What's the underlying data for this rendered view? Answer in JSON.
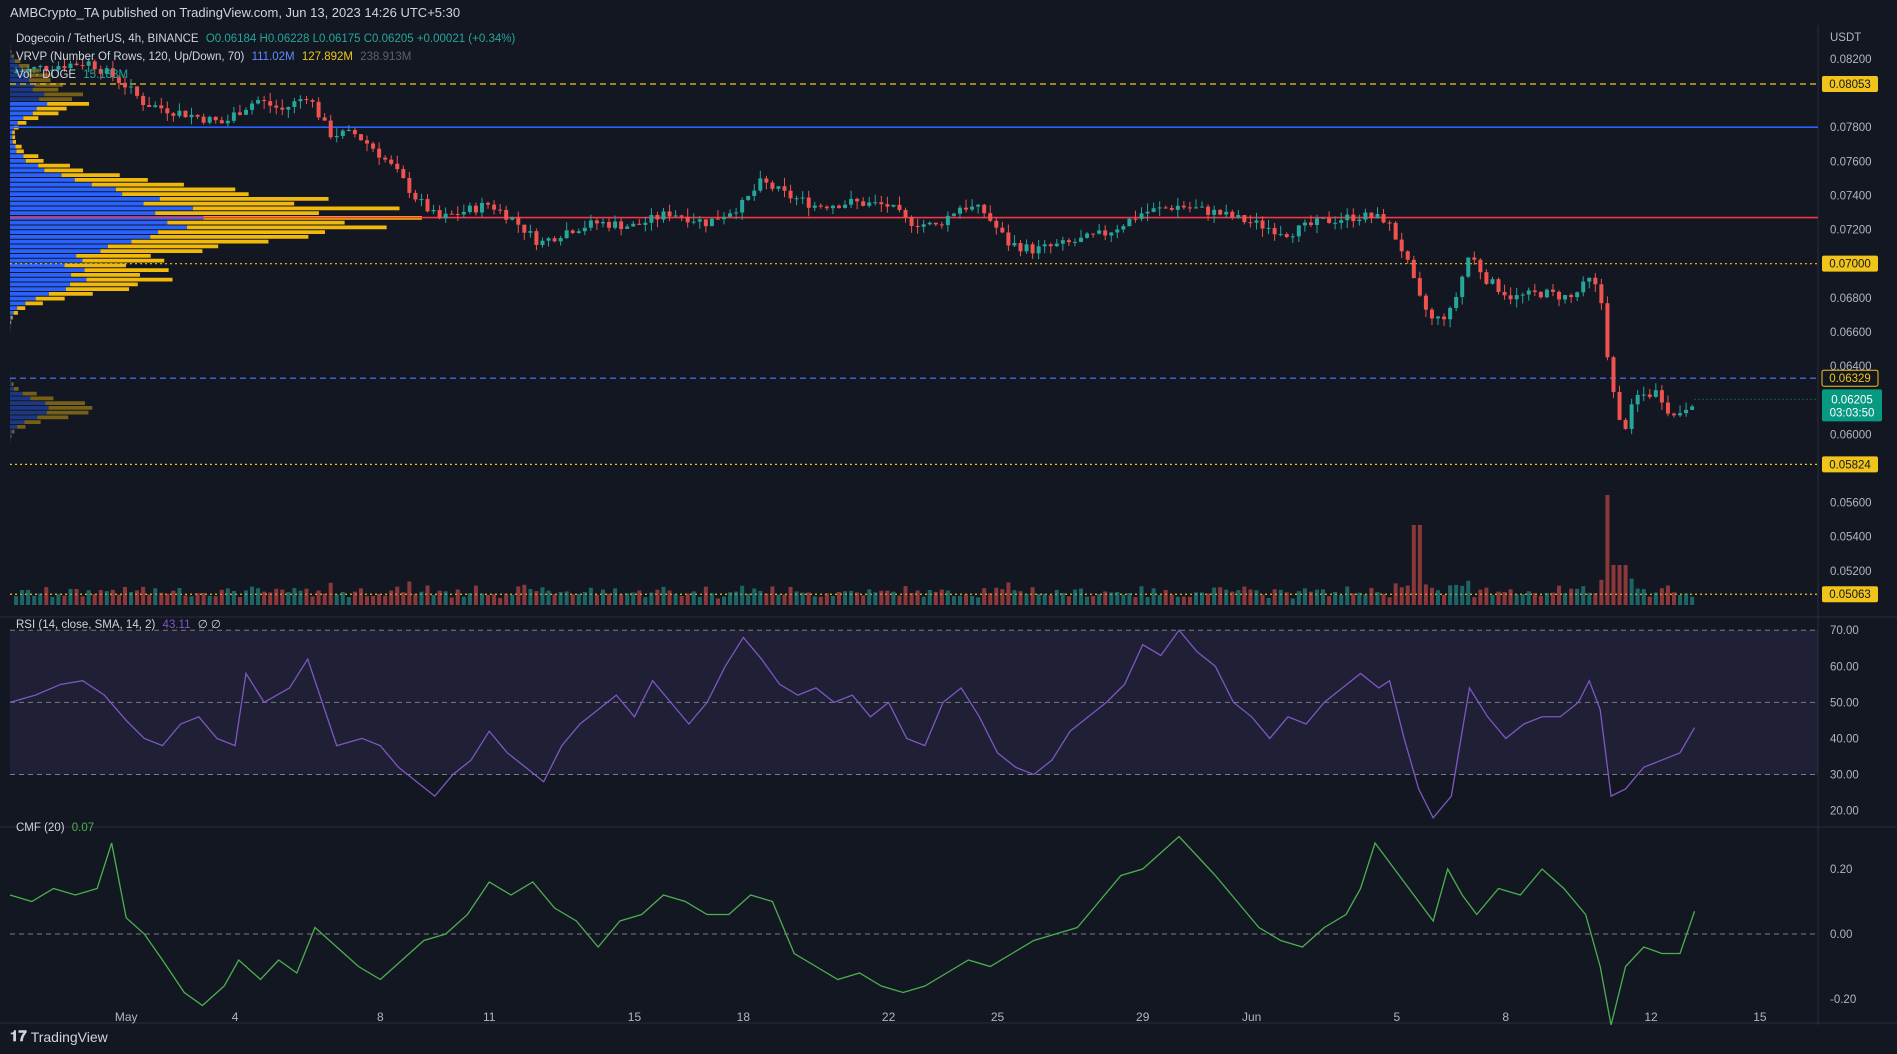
{
  "header": "AMBCrypto_TA published on TradingView.com, Jun 13, 2023 14:26 UTC+5:30",
  "legend": {
    "symbol": "Dogecoin / TetherUS, 4h, BINANCE",
    "ohlc": "O0.06184 H0.06228 L0.06175 C0.06205 +0.00021 (+0.34%)",
    "vrvp_label": "VRVP (Number Of Rows, 120, Up/Down, 70)",
    "vrvp_up": "111.02M",
    "vrvp_down": "127.892M",
    "vrvp_total": "238.913M",
    "vol_label": "Vol · DOGE",
    "vol_value": "15.133M",
    "rsi_label": "RSI (14, close, SMA, 14, 2)",
    "rsi_value": "43.11",
    "rsi_extra": "∅ ∅",
    "cmf_label": "CMF (20)",
    "cmf_value": "0.07"
  },
  "footer": {
    "brand": "TradingView"
  },
  "colors": {
    "up": "#26a69a",
    "down": "#ef5350",
    "rsi": "#7e57c2",
    "cmf": "#4caf50",
    "level_yellow": "#f0c419",
    "level_blue": "#2962ff",
    "level_red": "#f23645",
    "poc": "#ef5350",
    "price_badge": "#089981"
  },
  "chart_data": [
    {
      "type": "candlestick",
      "title": "Dogecoin / TetherUS, 4h, BINANCE",
      "axis_unit": "USDT",
      "ylim": [
        0.05,
        0.0834
      ],
      "y_ticks": [
        "0.08200",
        "0.07800",
        "0.07600",
        "0.07400",
        "0.07200",
        "0.06800",
        "0.06600",
        "0.06400",
        "0.06000",
        "0.05600",
        "0.05400",
        "0.05200"
      ],
      "x_ticks": [
        {
          "label": "May",
          "day": 0
        },
        {
          "label": "4",
          "day": 3
        },
        {
          "label": "8",
          "day": 7
        },
        {
          "label": "11",
          "day": 10
        },
        {
          "label": "15",
          "day": 14
        },
        {
          "label": "18",
          "day": 17
        },
        {
          "label": "22",
          "day": 21
        },
        {
          "label": "25",
          "day": 24
        },
        {
          "label": "29",
          "day": 28
        },
        {
          "label": "Jun",
          "day": 31
        },
        {
          "label": "5",
          "day": 35
        },
        {
          "label": "8",
          "day": 38
        },
        {
          "label": "12",
          "day": 42
        },
        {
          "label": "15",
          "day": 45
        }
      ],
      "x_start_day": -3.2,
      "x_end_day": 46.6,
      "last_day": 43.2,
      "price_path": [
        [
          -3.2,
          0.0812
        ],
        [
          -2.0,
          0.0816
        ],
        [
          -1.0,
          0.0818
        ],
        [
          -0.1,
          0.0806
        ],
        [
          0.5,
          0.0794
        ],
        [
          1.2,
          0.079
        ],
        [
          2.0,
          0.0786
        ],
        [
          2.7,
          0.0782
        ],
        [
          3.0,
          0.0788
        ],
        [
          3.6,
          0.0796
        ],
        [
          4.3,
          0.079
        ],
        [
          5.0,
          0.0799
        ],
        [
          5.6,
          0.0776
        ],
        [
          6.3,
          0.0776
        ],
        [
          6.8,
          0.0768
        ],
        [
          7.4,
          0.0755
        ],
        [
          8.0,
          0.0738
        ],
        [
          8.6,
          0.0726
        ],
        [
          9.2,
          0.073
        ],
        [
          10.0,
          0.0735
        ],
        [
          10.6,
          0.0727
        ],
        [
          11.4,
          0.0712
        ],
        [
          12.2,
          0.072
        ],
        [
          13.0,
          0.0724
        ],
        [
          14.0,
          0.0722
        ],
        [
          15.0,
          0.073
        ],
        [
          16.0,
          0.0724
        ],
        [
          17.0,
          0.0735
        ],
        [
          17.5,
          0.0748
        ],
        [
          18.2,
          0.074
        ],
        [
          19.0,
          0.0734
        ],
        [
          20.0,
          0.0736
        ],
        [
          21.0,
          0.0734
        ],
        [
          21.5,
          0.0725
        ],
        [
          22.3,
          0.0722
        ],
        [
          23.0,
          0.0734
        ],
        [
          23.6,
          0.0731
        ],
        [
          24.3,
          0.0712
        ],
        [
          25.0,
          0.0708
        ],
        [
          26.0,
          0.0712
        ],
        [
          27.0,
          0.0718
        ],
        [
          28.0,
          0.073
        ],
        [
          29.0,
          0.0734
        ],
        [
          30.0,
          0.073
        ],
        [
          31.0,
          0.0724
        ],
        [
          32.0,
          0.0718
        ],
        [
          33.0,
          0.0725
        ],
        [
          34.0,
          0.0728
        ],
        [
          34.7,
          0.0726
        ],
        [
          35.2,
          0.0706
        ],
        [
          35.6,
          0.068
        ],
        [
          36.0,
          0.0666
        ],
        [
          36.5,
          0.0672
        ],
        [
          37.0,
          0.0706
        ],
        [
          37.5,
          0.069
        ],
        [
          38.2,
          0.068
        ],
        [
          39.0,
          0.0683
        ],
        [
          39.8,
          0.068
        ],
        [
          40.3,
          0.069
        ],
        [
          40.6,
          0.0683
        ],
        [
          40.9,
          0.063
        ],
        [
          41.2,
          0.06
        ],
        [
          41.6,
          0.0622
        ],
        [
          42.2,
          0.0625
        ],
        [
          42.6,
          0.061
        ],
        [
          43.2,
          0.06205
        ]
      ],
      "levels": [
        {
          "price": 0.08053,
          "label": "0.08053",
          "style": "dashed",
          "color": "#f0c419"
        },
        {
          "price": 0.078,
          "label": "",
          "style": "solid",
          "color": "#2962ff"
        },
        {
          "price": 0.0727,
          "label": "",
          "style": "solid",
          "color": "#f23645"
        },
        {
          "price": 0.07,
          "label": "0.07000",
          "style": "dotted",
          "color": "#f0c419"
        },
        {
          "price": 0.06329,
          "label": "0.06329",
          "style": "dashed",
          "color": "#4d7cff"
        },
        {
          "price": 0.05824,
          "label": "0.05824",
          "style": "dotted",
          "color": "#f0c419"
        },
        {
          "price": 0.05063,
          "label": "0.05063",
          "style": "dotted",
          "color": "#f0c419"
        }
      ],
      "current_price": "0.06205",
      "countdown": "03:03:50"
    },
    {
      "type": "line",
      "title": "RSI (14, close, SMA, 14, 2)",
      "ylim": [
        16,
        72
      ],
      "band": [
        30,
        70
      ],
      "midline": 50,
      "y_ticks": [
        "70.00",
        "60.00",
        "50.00",
        "40.00",
        "30.00",
        "20.00"
      ],
      "points": [
        [
          -3.2,
          50
        ],
        [
          -2.5,
          52
        ],
        [
          -1.8,
          55
        ],
        [
          -1.2,
          56
        ],
        [
          -0.6,
          52
        ],
        [
          0,
          45
        ],
        [
          0.5,
          40
        ],
        [
          1.0,
          38
        ],
        [
          1.5,
          44
        ],
        [
          2.0,
          46
        ],
        [
          2.5,
          40
        ],
        [
          3.0,
          38
        ],
        [
          3.3,
          58
        ],
        [
          3.8,
          50
        ],
        [
          4.5,
          54
        ],
        [
          5.0,
          62
        ],
        [
          5.4,
          50
        ],
        [
          5.8,
          38
        ],
        [
          6.5,
          40
        ],
        [
          7.0,
          38
        ],
        [
          7.5,
          32
        ],
        [
          8.0,
          28
        ],
        [
          8.5,
          24
        ],
        [
          9.0,
          30
        ],
        [
          9.5,
          34
        ],
        [
          10.0,
          42
        ],
        [
          10.5,
          36
        ],
        [
          11.0,
          32
        ],
        [
          11.5,
          28
        ],
        [
          12.0,
          38
        ],
        [
          12.5,
          44
        ],
        [
          13.0,
          48
        ],
        [
          13.5,
          52
        ],
        [
          14.0,
          46
        ],
        [
          14.5,
          56
        ],
        [
          15.0,
          50
        ],
        [
          15.5,
          44
        ],
        [
          16.0,
          50
        ],
        [
          16.5,
          60
        ],
        [
          17.0,
          68
        ],
        [
          17.5,
          62
        ],
        [
          18.0,
          55
        ],
        [
          18.5,
          52
        ],
        [
          19.0,
          54
        ],
        [
          19.5,
          50
        ],
        [
          20.0,
          52
        ],
        [
          20.5,
          46
        ],
        [
          21.0,
          50
        ],
        [
          21.5,
          40
        ],
        [
          22.0,
          38
        ],
        [
          22.5,
          50
        ],
        [
          23.0,
          54
        ],
        [
          23.5,
          46
        ],
        [
          24.0,
          36
        ],
        [
          24.5,
          32
        ],
        [
          25.0,
          30
        ],
        [
          25.5,
          34
        ],
        [
          26.0,
          42
        ],
        [
          26.5,
          46
        ],
        [
          27.0,
          50
        ],
        [
          27.5,
          55
        ],
        [
          28.0,
          66
        ],
        [
          28.5,
          63
        ],
        [
          29.0,
          70
        ],
        [
          29.5,
          64
        ],
        [
          30.0,
          60
        ],
        [
          30.5,
          50
        ],
        [
          31.0,
          46
        ],
        [
          31.5,
          40
        ],
        [
          32.0,
          46
        ],
        [
          32.5,
          44
        ],
        [
          33.0,
          50
        ],
        [
          33.5,
          54
        ],
        [
          34.0,
          58
        ],
        [
          34.5,
          54
        ],
        [
          34.8,
          56
        ],
        [
          35.2,
          40
        ],
        [
          35.6,
          26
        ],
        [
          36.0,
          18
        ],
        [
          36.5,
          24
        ],
        [
          37.0,
          54
        ],
        [
          37.5,
          46
        ],
        [
          38.0,
          40
        ],
        [
          38.5,
          44
        ],
        [
          39.0,
          46
        ],
        [
          39.5,
          46
        ],
        [
          40.0,
          50
        ],
        [
          40.3,
          56
        ],
        [
          40.6,
          48
        ],
        [
          40.9,
          24
        ],
        [
          41.3,
          26
        ],
        [
          41.8,
          32
        ],
        [
          42.3,
          34
        ],
        [
          42.8,
          36
        ],
        [
          43.2,
          43
        ]
      ]
    },
    {
      "type": "line",
      "title": "CMF (20)",
      "ylim": [
        -0.28,
        0.32
      ],
      "midline": 0,
      "y_ticks": [
        "0.20",
        "0.00",
        "-0.20"
      ],
      "points": [
        [
          -3.2,
          0.12
        ],
        [
          -2.6,
          0.1
        ],
        [
          -2.0,
          0.14
        ],
        [
          -1.4,
          0.12
        ],
        [
          -0.8,
          0.14
        ],
        [
          -0.4,
          0.28
        ],
        [
          0,
          0.05
        ],
        [
          0.5,
          0.0
        ],
        [
          1.0,
          -0.08
        ],
        [
          1.6,
          -0.18
        ],
        [
          2.1,
          -0.22
        ],
        [
          2.7,
          -0.16
        ],
        [
          3.1,
          -0.08
        ],
        [
          3.7,
          -0.14
        ],
        [
          4.2,
          -0.08
        ],
        [
          4.7,
          -0.12
        ],
        [
          5.2,
          0.02
        ],
        [
          5.8,
          -0.04
        ],
        [
          6.4,
          -0.1
        ],
        [
          7.0,
          -0.14
        ],
        [
          7.6,
          -0.08
        ],
        [
          8.2,
          -0.02
        ],
        [
          8.8,
          0.0
        ],
        [
          9.4,
          0.06
        ],
        [
          10.0,
          0.16
        ],
        [
          10.6,
          0.12
        ],
        [
          11.2,
          0.16
        ],
        [
          11.8,
          0.08
        ],
        [
          12.4,
          0.04
        ],
        [
          13.0,
          -0.04
        ],
        [
          13.6,
          0.04
        ],
        [
          14.2,
          0.06
        ],
        [
          14.8,
          0.12
        ],
        [
          15.4,
          0.1
        ],
        [
          16.0,
          0.06
        ],
        [
          16.6,
          0.06
        ],
        [
          17.2,
          0.12
        ],
        [
          17.8,
          0.1
        ],
        [
          18.4,
          -0.06
        ],
        [
          19.0,
          -0.1
        ],
        [
          19.6,
          -0.14
        ],
        [
          20.2,
          -0.12
        ],
        [
          20.8,
          -0.16
        ],
        [
          21.4,
          -0.18
        ],
        [
          22.0,
          -0.16
        ],
        [
          22.6,
          -0.12
        ],
        [
          23.2,
          -0.08
        ],
        [
          23.8,
          -0.1
        ],
        [
          24.4,
          -0.06
        ],
        [
          25.0,
          -0.02
        ],
        [
          25.6,
          0.0
        ],
        [
          26.2,
          0.02
        ],
        [
          26.8,
          0.1
        ],
        [
          27.4,
          0.18
        ],
        [
          28.0,
          0.2
        ],
        [
          28.6,
          0.26
        ],
        [
          29.0,
          0.3
        ],
        [
          29.5,
          0.24
        ],
        [
          30.0,
          0.18
        ],
        [
          30.6,
          0.1
        ],
        [
          31.2,
          0.02
        ],
        [
          31.8,
          -0.02
        ],
        [
          32.4,
          -0.04
        ],
        [
          33.0,
          0.02
        ],
        [
          33.6,
          0.06
        ],
        [
          34.0,
          0.14
        ],
        [
          34.4,
          0.28
        ],
        [
          34.8,
          0.22
        ],
        [
          35.2,
          0.16
        ],
        [
          35.6,
          0.1
        ],
        [
          36.0,
          0.04
        ],
        [
          36.4,
          0.2
        ],
        [
          36.8,
          0.12
        ],
        [
          37.2,
          0.06
        ],
        [
          37.8,
          0.14
        ],
        [
          38.4,
          0.12
        ],
        [
          39.0,
          0.2
        ],
        [
          39.6,
          0.14
        ],
        [
          40.2,
          0.06
        ],
        [
          40.6,
          -0.1
        ],
        [
          40.9,
          -0.28
        ],
        [
          41.3,
          -0.1
        ],
        [
          41.8,
          -0.04
        ],
        [
          42.3,
          -0.06
        ],
        [
          42.8,
          -0.06
        ],
        [
          43.2,
          0.07
        ]
      ]
    }
  ]
}
